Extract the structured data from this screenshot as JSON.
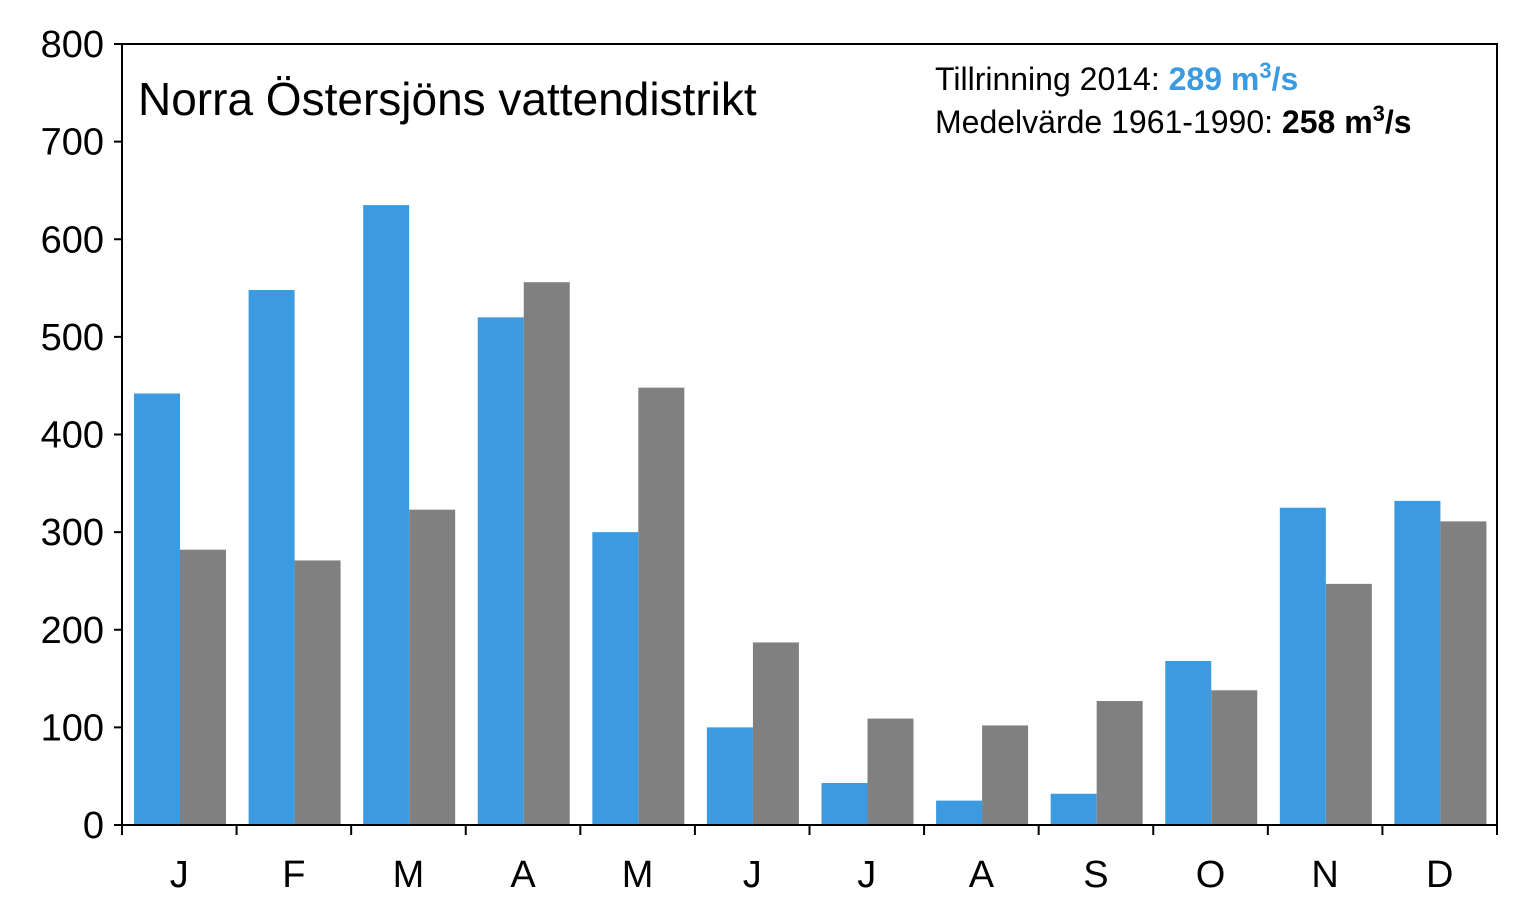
{
  "chart_data": {
    "type": "bar",
    "title": "Norra Östersjöns vattendistrikt",
    "categories": [
      "J",
      "F",
      "M",
      "A",
      "M",
      "J",
      "J",
      "A",
      "S",
      "O",
      "N",
      "D"
    ],
    "series": [
      {
        "values": [
          442,
          548,
          635,
          520,
          300,
          100,
          43,
          25,
          32,
          168,
          325,
          332
        ]
      },
      {
        "values": [
          282,
          271,
          323,
          556,
          448,
          187,
          109,
          102,
          127,
          138,
          247,
          311
        ]
      }
    ],
    "ylim": [
      0,
      800
    ],
    "yticks": [
      0,
      100,
      200,
      300,
      400,
      500,
      600,
      700,
      800
    ],
    "grid": false,
    "annotations": {
      "line1_label": "Tillrinning 2014: ",
      "line1_value": "289 m",
      "line1_sup": "3",
      "line1_unit": "/s",
      "line2_label": "Medelvärde 1961-1990: ",
      "line2_value": "258 m",
      "line2_sup": "3",
      "line2_unit": "/s"
    }
  },
  "colors": {
    "series_2014": "#3c9be0",
    "series_mean": "#808080",
    "highlight_text": "#3c9be0"
  }
}
